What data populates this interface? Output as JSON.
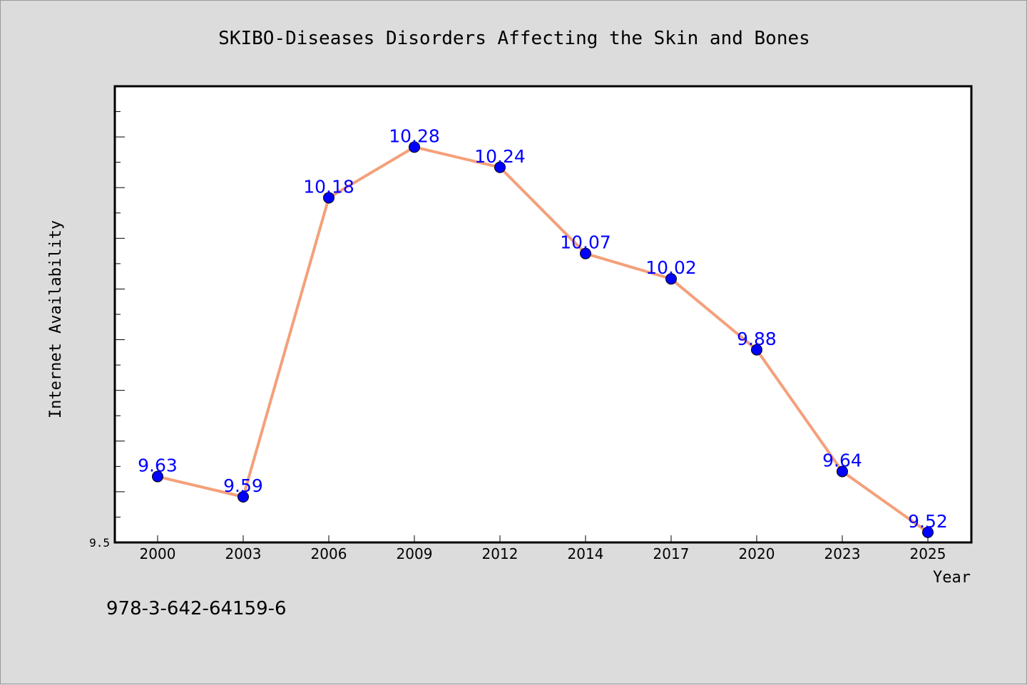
{
  "chart_data": {
    "type": "line",
    "title": "SKIBO-Diseases Disorders Affecting the Skin and Bones",
    "xlabel": "Year",
    "ylabel": "Internet Availability",
    "categories": [
      "2000",
      "2003",
      "2006",
      "2009",
      "2012",
      "2014",
      "2017",
      "2020",
      "2023",
      "2025"
    ],
    "values": [
      9.63,
      9.59,
      10.18,
      10.28,
      10.24,
      10.07,
      10.02,
      9.88,
      9.64,
      9.52
    ],
    "data_labels": [
      "9.63",
      "9.59",
      "10.18",
      "10.28",
      "10.24",
      "10.07",
      "10.02",
      "9.88",
      "9.64",
      "9.52"
    ],
    "ylim": [
      9.5,
      10.4
    ],
    "yticks": [
      "9.5"
    ],
    "grid": false,
    "line_color": "#f4a07a",
    "marker_color": "#0000ff",
    "label_color": "#0000ff"
  },
  "footer": {
    "isbn": "978-3-642-64159-6"
  }
}
